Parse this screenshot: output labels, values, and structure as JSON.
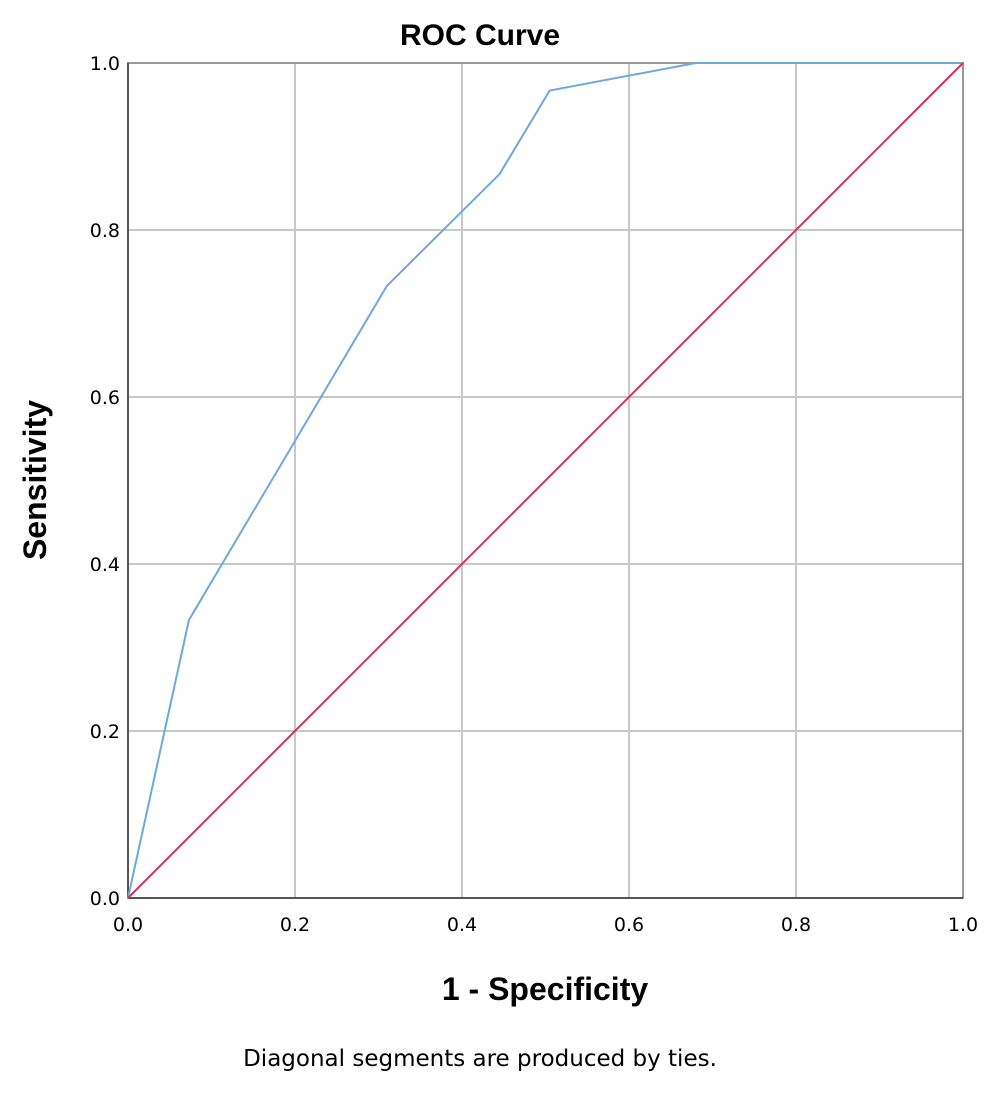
{
  "chart_data": {
    "type": "line",
    "title": "ROC Curve",
    "xlabel": "1 - Specificity",
    "ylabel": "Sensitivity",
    "footnote": "Diagonal segments are produced by ties.",
    "xlim": [
      0,
      1
    ],
    "ylim": [
      0,
      1
    ],
    "grid": true,
    "x_ticks": [
      "0.0",
      "0.2",
      "0.4",
      "0.6",
      "0.8",
      "1.0"
    ],
    "y_ticks": [
      "0.0",
      "0.2",
      "0.4",
      "0.6",
      "0.8",
      "1.0"
    ],
    "series": [
      {
        "color": "#6fa8e0",
        "x": [
          0.0,
          0.073,
          0.31,
          0.445,
          0.505,
          0.68,
          1.0
        ],
        "y": [
          0.0,
          0.333,
          0.733,
          0.867,
          0.967,
          1.0,
          1.0
        ]
      },
      {
        "color": "#d1345b",
        "x": [
          0.0,
          1.0
        ],
        "y": [
          0.0,
          1.0
        ]
      }
    ]
  }
}
